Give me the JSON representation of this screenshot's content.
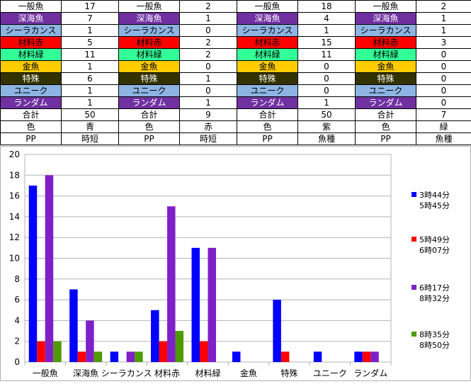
{
  "table": {
    "row_labels": [
      "一般魚",
      "深海魚",
      "シーラカンス",
      "材料赤",
      "材料緑",
      "金魚",
      "特殊",
      "ユニーク",
      "ランダム",
      "合計",
      "色",
      "PP"
    ],
    "row_colors": [
      "#ffffff",
      "#7030a0",
      "#8db4e2",
      "#ff0000",
      "#33ff99",
      "#ffcc00",
      "#333300",
      "#8db4e2",
      "#7030a0",
      "#ffffff",
      "#ffffff",
      "#ffffff"
    ],
    "row_text_colors": [
      "#000000",
      "#ffffff",
      "#000000",
      "#000000",
      "#000000",
      "#000000",
      "#ffffff",
      "#000000",
      "#ffffff",
      "#000000",
      "#000000",
      "#000000"
    ],
    "groups": [
      {
        "values": [
          "17",
          "7",
          "1",
          "5",
          "11",
          "1",
          "6",
          "1",
          "1",
          "50",
          "青",
          "時短"
        ]
      },
      {
        "values": [
          "2",
          "1",
          "0",
          "2",
          "2",
          "0",
          "1",
          "0",
          "1",
          "9",
          "赤",
          "時短"
        ]
      },
      {
        "values": [
          "18",
          "4",
          "1",
          "15",
          "11",
          "0",
          "0",
          "0",
          "1",
          "50",
          "紫",
          "魚種"
        ]
      },
      {
        "values": [
          "2",
          "1",
          "1",
          "3",
          "0",
          "0",
          "0",
          "0",
          "0",
          "7",
          "緑",
          "魚種"
        ]
      }
    ],
    "color_label": "色",
    "pp_label": "PP"
  },
  "chart_data": {
    "type": "bar",
    "categories": [
      "一般魚",
      "深海魚",
      "シーラカンス",
      "材料赤",
      "材料緑",
      "金魚",
      "特殊",
      "ユニーク",
      "ランダム"
    ],
    "ylim": [
      0,
      20
    ],
    "yticks": [
      "0",
      "2",
      "4",
      "6",
      "8",
      "10",
      "12",
      "14",
      "16",
      "18",
      "20"
    ],
    "series": [
      {
        "name": "3時44分\n5時45分",
        "color": "#0000ff",
        "values": [
          17,
          7,
          1,
          5,
          11,
          1,
          6,
          1,
          1
        ]
      },
      {
        "name": "5時49分\n6時07分",
        "color": "#ff0000",
        "values": [
          2,
          1,
          0,
          2,
          2,
          0,
          1,
          0,
          1
        ]
      },
      {
        "name": "6時17分\n8時32分",
        "color": "#7f1fc8",
        "values": [
          18,
          4,
          1,
          15,
          11,
          0,
          0,
          0,
          1
        ]
      },
      {
        "name": "8時35分\n8時50分",
        "color": "#4e9a06",
        "values": [
          2,
          1,
          1,
          3,
          0,
          0,
          0,
          0,
          0
        ]
      }
    ],
    "grid": true,
    "legend": "right"
  }
}
